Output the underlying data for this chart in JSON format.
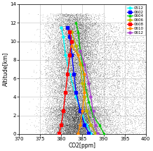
{
  "title": "",
  "xlabel": "CO2[ppm]",
  "ylabel": "Altitude[km]",
  "xlim": [
    370,
    400
  ],
  "ylim": [
    0,
    14
  ],
  "xticks": [
    370,
    375,
    380,
    385,
    390,
    395,
    400
  ],
  "yticks": [
    0,
    2,
    4,
    6,
    8,
    10,
    12,
    14
  ],
  "background_color": "#ffffff",
  "scatter_color": "#111111",
  "series": [
    {
      "label": "0512",
      "color": "#00ffff",
      "marker": "o",
      "co2": [
        387.0,
        386.0,
        385.0,
        383.5,
        382.0,
        381.0,
        380.5,
        380.0
      ],
      "alt": [
        0.1,
        1.0,
        2.0,
        4.0,
        6.5,
        8.5,
        10.5,
        11.5
      ]
    },
    {
      "label": "0602",
      "color": "#0000ff",
      "marker": "s",
      "co2": [
        386.5,
        385.5,
        384.5,
        383.5,
        383.0,
        382.5,
        382.0,
        381.5
      ],
      "alt": [
        0.1,
        1.0,
        2.5,
        4.5,
        6.5,
        8.5,
        10.5,
        11.5
      ]
    },
    {
      "label": "0604",
      "color": "#00cc00",
      "marker": "^",
      "co2": [
        390.0,
        389.0,
        387.5,
        386.5,
        385.5,
        385.0,
        384.5,
        384.0,
        383.5
      ],
      "alt": [
        0.1,
        1.0,
        2.0,
        3.5,
        5.5,
        7.5,
        9.0,
        11.0,
        12.0
      ]
    },
    {
      "label": "0606",
      "color": "#bbbb00",
      "marker": "D",
      "co2": [
        388.0,
        387.0,
        386.0,
        385.5,
        385.0,
        384.5,
        383.5,
        382.5
      ],
      "alt": [
        0.1,
        1.0,
        2.5,
        4.0,
        5.5,
        7.5,
        9.5,
        11.0
      ]
    },
    {
      "label": "0608",
      "color": "#ff0000",
      "marker": "s",
      "co2": [
        379.5,
        380.0,
        380.5,
        381.0,
        381.5,
        382.0,
        382.5,
        382.0
      ],
      "alt": [
        0.1,
        1.0,
        2.5,
        4.5,
        6.5,
        8.5,
        10.0,
        11.0
      ]
    },
    {
      "label": "0610",
      "color": "#ff8800",
      "marker": "o",
      "co2": [
        384.0,
        384.5,
        385.0,
        385.5,
        385.5,
        384.0,
        382.5
      ],
      "alt": [
        0.1,
        1.0,
        2.5,
        4.5,
        6.5,
        8.5,
        9.5
      ]
    },
    {
      "label": "0612",
      "color": "#aa44cc",
      "marker": "o",
      "co2": [
        388.5,
        388.0,
        387.5,
        387.0,
        386.5,
        385.5,
        384.5
      ],
      "alt": [
        0.1,
        1.0,
        2.5,
        4.0,
        5.5,
        7.5,
        9.0
      ]
    }
  ]
}
